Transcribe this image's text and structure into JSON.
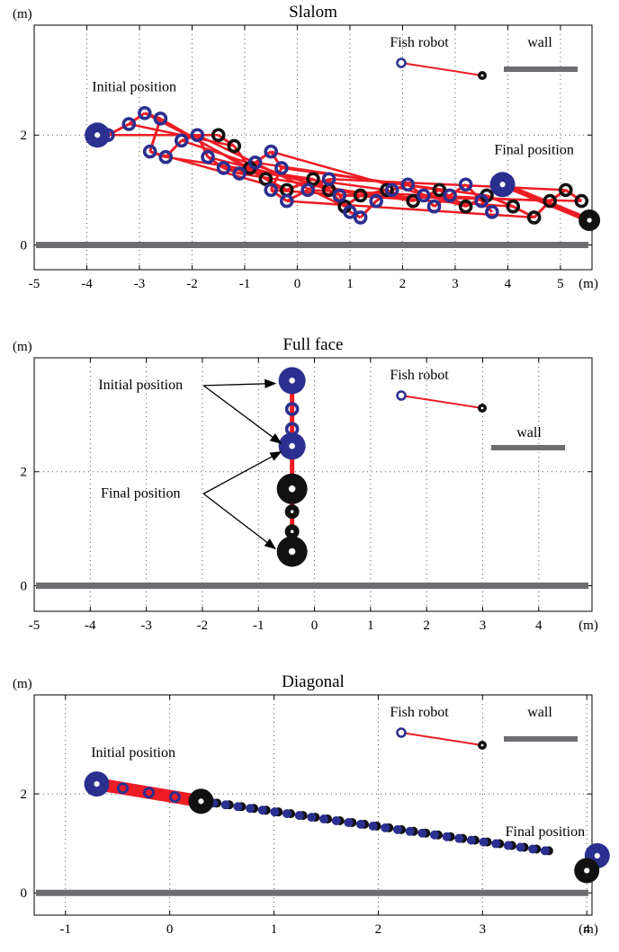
{
  "figure_unit": "(m)",
  "colors": {
    "robot_blue": "#2b2f8f",
    "robot_black": "#111111",
    "tail_red": "#ee1c24",
    "wall_gray": "#6d6e71"
  },
  "legend": {
    "fish_robot": "Fish robot",
    "wall": "wall"
  },
  "labels": {
    "initial": "Initial position",
    "final": "Final position"
  },
  "chart_data": [
    {
      "type": "scatter",
      "title": "Slalom",
      "xlabel": "(m)",
      "ylabel": "(m)",
      "xlim": [
        -5,
        5.6
      ],
      "ylim": [
        -0.45,
        4.0
      ],
      "xticks": [
        "-5",
        "-4",
        "-3",
        "-2",
        "-1",
        "0",
        "1",
        "2",
        "3",
        "4",
        "5"
      ],
      "yticks": [
        "0",
        "2"
      ],
      "grid": true,
      "legend_position": "top-right",
      "wall_y": 0,
      "blue_path": [
        [
          -3.6,
          2.0
        ],
        [
          -3.2,
          2.2
        ],
        [
          -2.9,
          2.4
        ],
        [
          -2.6,
          2.3
        ],
        [
          -2.8,
          1.7
        ],
        [
          -2.5,
          1.6
        ],
        [
          -2.2,
          1.9
        ],
        [
          -1.9,
          2.0
        ],
        [
          -1.7,
          1.6
        ],
        [
          -1.4,
          1.4
        ],
        [
          -1.1,
          1.3
        ],
        [
          -0.8,
          1.5
        ],
        [
          -0.5,
          1.7
        ],
        [
          -0.3,
          1.4
        ],
        [
          -0.5,
          1.0
        ],
        [
          -0.2,
          0.8
        ],
        [
          0.2,
          1.0
        ],
        [
          0.6,
          1.2
        ],
        [
          0.8,
          0.9
        ],
        [
          1.0,
          0.6
        ],
        [
          1.2,
          0.5
        ],
        [
          1.5,
          0.8
        ],
        [
          1.8,
          1.0
        ],
        [
          2.1,
          1.1
        ],
        [
          2.4,
          0.9
        ],
        [
          2.6,
          0.7
        ],
        [
          2.9,
          0.9
        ],
        [
          3.2,
          1.1
        ],
        [
          3.5,
          0.8
        ],
        [
          3.7,
          0.6
        ]
      ],
      "black_path": [
        [
          -1.5,
          2.0
        ],
        [
          -1.2,
          1.8
        ],
        [
          -0.9,
          1.4
        ],
        [
          -0.6,
          1.2
        ],
        [
          -0.2,
          1.0
        ],
        [
          0.3,
          1.2
        ],
        [
          0.6,
          1.0
        ],
        [
          0.9,
          0.7
        ],
        [
          1.2,
          0.9
        ],
        [
          1.7,
          1.0
        ],
        [
          2.2,
          0.8
        ],
        [
          2.7,
          1.0
        ],
        [
          3.2,
          0.7
        ],
        [
          3.6,
          0.9
        ],
        [
          4.1,
          0.7
        ],
        [
          4.5,
          0.5
        ],
        [
          4.8,
          0.8
        ],
        [
          5.1,
          1.0
        ],
        [
          5.4,
          0.8
        ]
      ],
      "initial": [
        -3.8,
        2.0
      ],
      "final_blue": [
        3.9,
        1.1
      ],
      "final_black": [
        5.55,
        0.45
      ]
    },
    {
      "type": "scatter",
      "title": "Full face",
      "xlabel": "(m)",
      "ylabel": "(m)",
      "xlim": [
        -5,
        4.95
      ],
      "ylim": [
        -0.45,
        4.0
      ],
      "xticks": [
        "-5",
        "-4",
        "-3",
        "-2",
        "-1",
        "0",
        "1",
        "2",
        "3",
        "4"
      ],
      "yticks": [
        "0",
        "2"
      ],
      "grid": true,
      "legend_position": "top-right",
      "wall_y": 0,
      "blue_points": [
        [
          -0.4,
          3.6
        ],
        [
          -0.4,
          3.1
        ],
        [
          -0.4,
          2.75
        ],
        [
          -0.4,
          2.45
        ]
      ],
      "black_points": [
        [
          -0.4,
          1.7
        ],
        [
          -0.4,
          1.3
        ],
        [
          -0.4,
          0.95
        ],
        [
          -0.4,
          0.6
        ]
      ],
      "initial_points": [
        [
          -0.4,
          3.6
        ],
        [
          -0.4,
          2.45
        ]
      ],
      "final_points": [
        [
          -0.4,
          1.7
        ],
        [
          -0.4,
          0.6
        ]
      ]
    },
    {
      "type": "scatter",
      "title": "Diagonal",
      "xlabel": "(m)",
      "ylabel": "(m)",
      "xlim": [
        -1.3,
        4.05
      ],
      "ylim": [
        -0.45,
        4.0
      ],
      "xticks": [
        "-1",
        "0",
        "1",
        "2",
        "3",
        "4"
      ],
      "yticks": [
        "0",
        "2"
      ],
      "grid": true,
      "legend_position": "top-right",
      "wall_y": 0,
      "start": [
        -0.7,
        2.2
      ],
      "blue_end": [
        0.3,
        1.85
      ],
      "black_end": [
        3.6,
        0.85
      ],
      "final_blue": [
        4.1,
        0.75
      ],
      "final_black": [
        4.0,
        0.45
      ]
    }
  ]
}
